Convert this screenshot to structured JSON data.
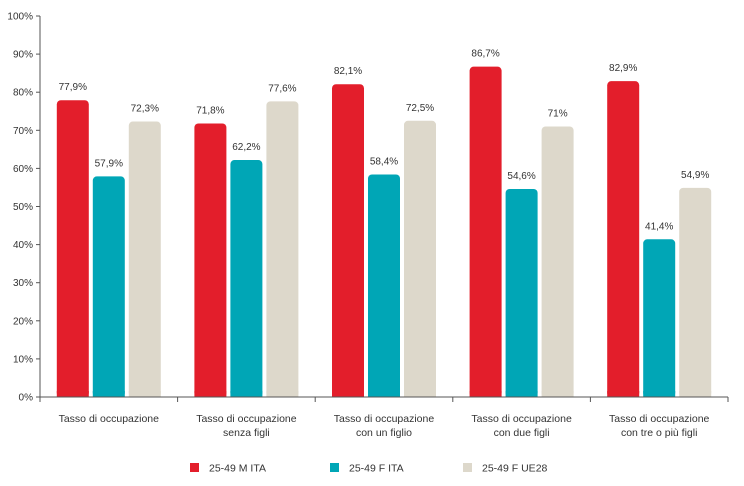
{
  "chart_data": {
    "type": "bar",
    "categories": [
      [
        "Tasso di occupazione"
      ],
      [
        "Tasso di occupazione",
        "senza figli"
      ],
      [
        "Tasso di occupazione",
        "con un figlio"
      ],
      [
        "Tasso di occupazione",
        "con due figli"
      ],
      [
        "Tasso di occupazione",
        "con tre o più figli"
      ]
    ],
    "series": [
      {
        "name": "25-49 M ITA",
        "color": "#e31e2b",
        "values": [
          77.9,
          71.8,
          82.1,
          86.7,
          82.9
        ],
        "labels": [
          "77,9%",
          "71,8%",
          "82,1%",
          "86,7%",
          "82,9%"
        ]
      },
      {
        "name": "25-49 F ITA",
        "color": "#00a6b6",
        "values": [
          57.9,
          62.2,
          58.4,
          54.6,
          41.4
        ],
        "labels": [
          "57,9%",
          "62,2%",
          "58,4%",
          "54,6%",
          "41,4%"
        ]
      },
      {
        "name": "25-49 F UE28",
        "color": "#ddd8cb",
        "values": [
          72.3,
          77.6,
          72.5,
          71,
          54.9
        ],
        "labels": [
          "72,3%",
          "77,6%",
          "72,5%",
          "71%",
          "54,9%"
        ]
      }
    ],
    "yticks": [
      "0%",
      "10%",
      "20%",
      "30%",
      "40%",
      "50%",
      "60%",
      "70%",
      "80%",
      "90%",
      "100%"
    ],
    "ylim": [
      0,
      100
    ],
    "title": "",
    "xlabel": "",
    "ylabel": "",
    "grid": false,
    "legend_position": "bottom"
  }
}
